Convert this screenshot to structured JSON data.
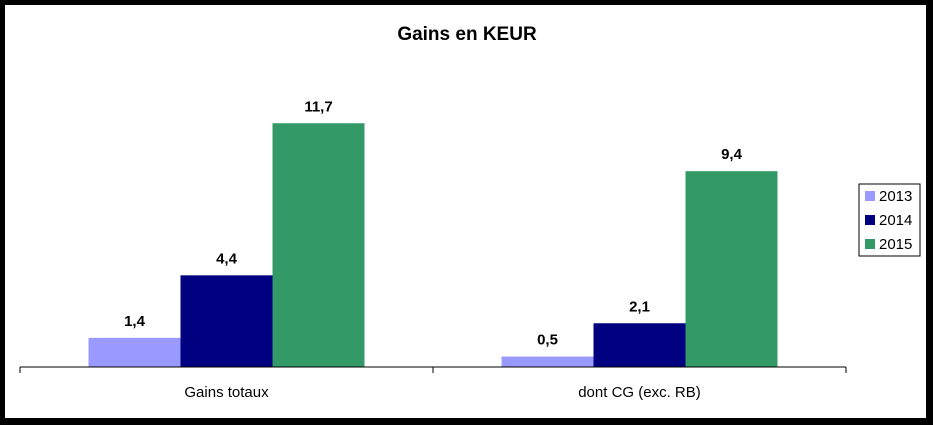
{
  "chart_data": {
    "type": "bar",
    "title": "Gains en KEUR",
    "categories": [
      "Gains totaux",
      "dont CG (exc. RB)"
    ],
    "series": [
      {
        "name": "2013",
        "values": [
          1.4,
          0.5
        ],
        "labels": [
          "1,4",
          "0,5"
        ],
        "color": "#9999ff"
      },
      {
        "name": "2014",
        "values": [
          4.4,
          2.1
        ],
        "labels": [
          "4,4",
          "2,1"
        ],
        "color": "#000080"
      },
      {
        "name": "2015",
        "values": [
          11.7,
          9.4
        ],
        "labels": [
          "11,7",
          "9,4"
        ],
        "color": "#339966"
      }
    ],
    "ylim": [
      0,
      12
    ],
    "grid": false,
    "legend": "right"
  }
}
